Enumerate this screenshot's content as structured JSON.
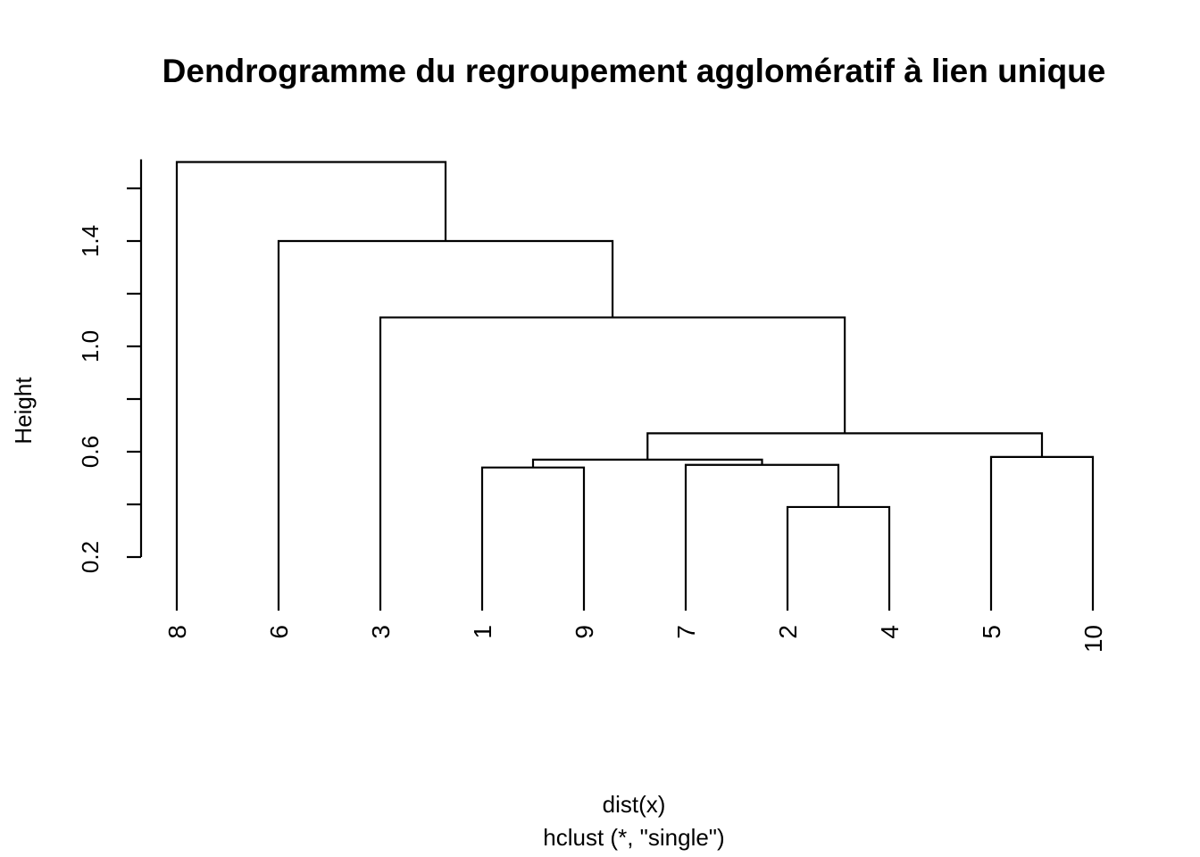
{
  "chart_data": {
    "type": "dendrogram",
    "title": "Dendrogramme du regroupement agglomératif à lien unique",
    "ylabel": "Height",
    "xlabel": "dist(x)",
    "sub": "hclust (*, \"single\")",
    "ylim": [
      0.2,
      1.71
    ],
    "y_ticks": [
      0.2,
      0.4,
      0.6,
      0.8,
      1.0,
      1.2,
      1.4,
      1.6
    ],
    "y_tick_labels": [
      "0.2",
      "",
      "0.6",
      "",
      "1.0",
      "",
      "1.4",
      ""
    ],
    "leaf_order": [
      "8",
      "6",
      "3",
      "1",
      "9",
      "7",
      "2",
      "4",
      "5",
      "10"
    ],
    "merges": [
      {
        "id": "A",
        "left": "2",
        "right": "4",
        "height": 0.39
      },
      {
        "id": "B",
        "left": "1",
        "right": "9",
        "height": 0.54
      },
      {
        "id": "C",
        "left": "7",
        "right": "A",
        "height": 0.55
      },
      {
        "id": "D",
        "left": "B",
        "right": "C",
        "height": 0.57
      },
      {
        "id": "E",
        "left": "5",
        "right": "10",
        "height": 0.58
      },
      {
        "id": "F",
        "left": "D",
        "right": "E",
        "height": 0.67
      },
      {
        "id": "G",
        "left": "3",
        "right": "F",
        "height": 1.11
      },
      {
        "id": "H",
        "left": "6",
        "right": "G",
        "height": 1.4
      },
      {
        "id": "I",
        "left": "8",
        "right": "H",
        "height": 1.7
      }
    ]
  }
}
